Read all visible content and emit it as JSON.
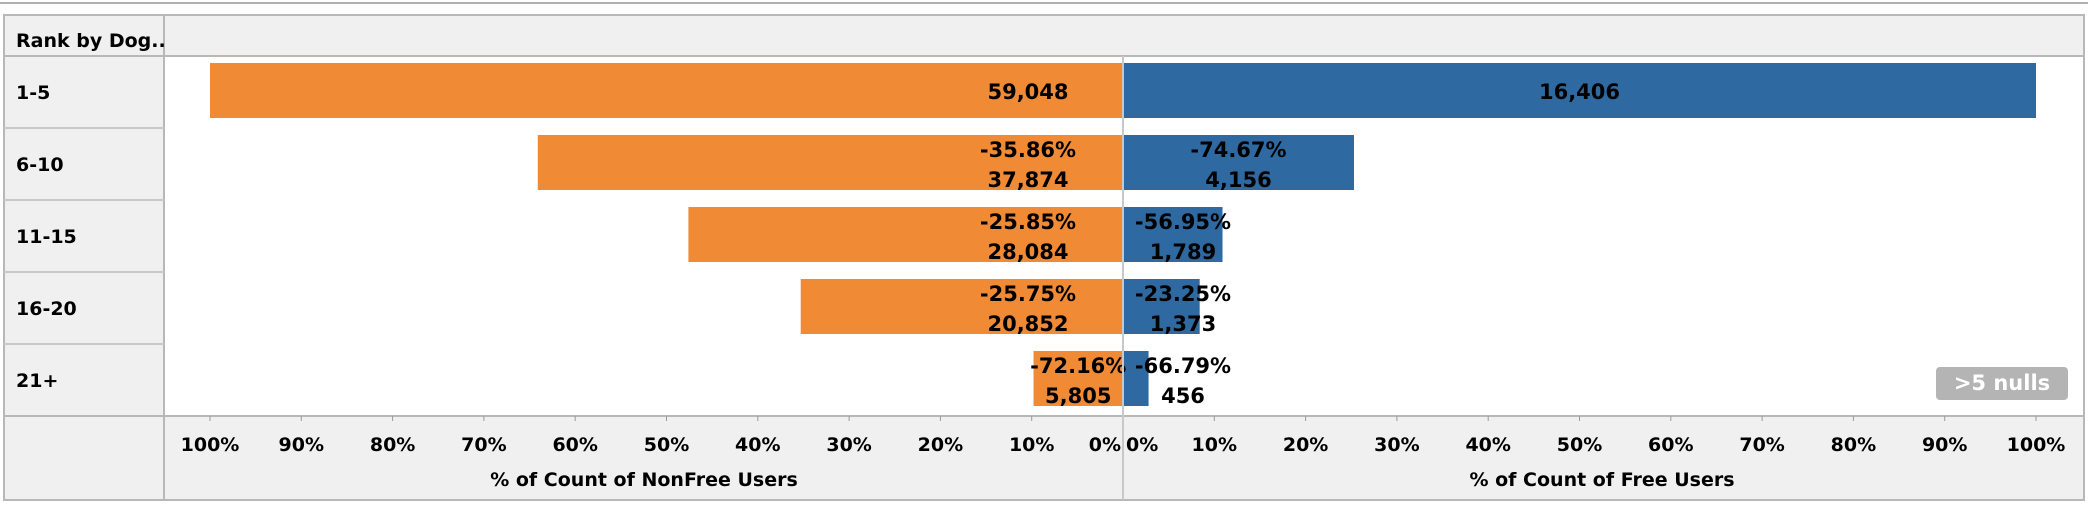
{
  "header": {
    "row_field_label": "Rank by Dog.."
  },
  "null_indicator": ">5 nulls",
  "chart_data": {
    "type": "bar",
    "orientation": "horizontal-diverging",
    "categories": [
      "1-5",
      "6-10",
      "11-15",
      "16-20",
      "21+"
    ],
    "left_panel": {
      "xlabel": "% of Count of NonFree Users",
      "color": "#f08a35",
      "direction": "reversed",
      "xlim": [
        0,
        100
      ],
      "ticks": [
        "100%",
        "90%",
        "80%",
        "70%",
        "60%",
        "50%",
        "40%",
        "30%",
        "20%",
        "10%",
        "0%"
      ],
      "percent_of_max": [
        100,
        64.1,
        47.6,
        35.3,
        9.8
      ],
      "counts": [
        "59,048",
        "37,874",
        "28,084",
        "20,852",
        "5,805"
      ],
      "pct_change_labels": [
        "",
        "-35.86%",
        "-25.85%",
        "-25.75%",
        "-72.16%"
      ]
    },
    "right_panel": {
      "xlabel": "% of Count of Free Users",
      "color": "#2e6aa1",
      "xlim": [
        0,
        100
      ],
      "ticks": [
        "0%",
        "10%",
        "20%",
        "30%",
        "40%",
        "50%",
        "60%",
        "70%",
        "80%",
        "90%",
        "100%"
      ],
      "percent_of_max": [
        100,
        25.3,
        10.9,
        8.4,
        2.8
      ],
      "counts": [
        "16,406",
        "4,156",
        "1,789",
        "1,373",
        "456"
      ],
      "pct_change_labels": [
        "",
        "-74.67%",
        "-56.95%",
        "-23.25%",
        "-66.79%"
      ]
    }
  }
}
